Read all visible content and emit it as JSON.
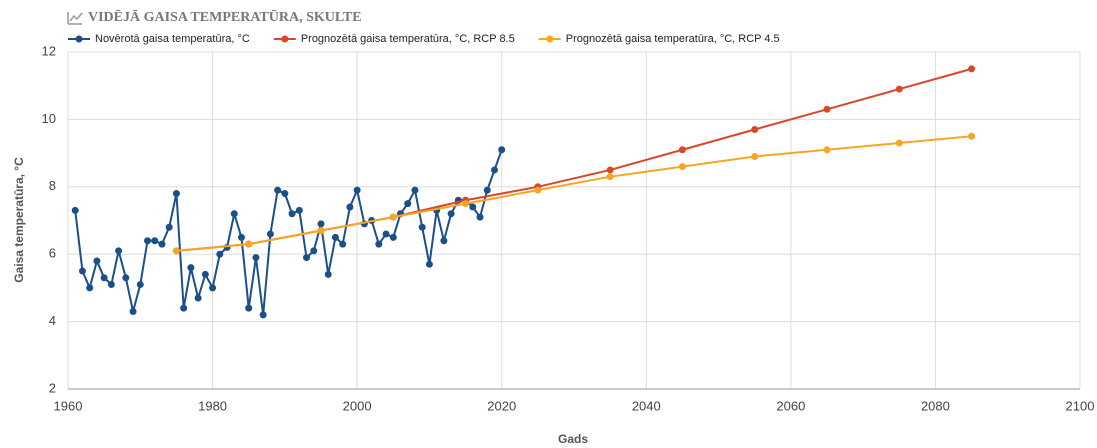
{
  "chart_data": {
    "type": "line",
    "title": "VIDĒJĀ GAISA TEMPERATŪRA, SKULTE",
    "x_label": "Gads",
    "y_label": "Gaisa temperatūra, °C",
    "xlim": [
      1960,
      2100
    ],
    "xticks": [
      1960,
      1980,
      2000,
      2020,
      2040,
      2060,
      2080,
      2100
    ],
    "ylim": [
      2,
      12
    ],
    "yticks": [
      2,
      4,
      6,
      8,
      10,
      12
    ],
    "grid": true,
    "legend": "top",
    "series": [
      {
        "name": "Novērotā gaisa temperatūra, °C",
        "color": "#1b4f8a",
        "x": [
          1961,
          1962,
          1963,
          1964,
          1965,
          1966,
          1967,
          1968,
          1969,
          1970,
          1971,
          1972,
          1973,
          1974,
          1975,
          1976,
          1977,
          1978,
          1979,
          1980,
          1981,
          1982,
          1983,
          1984,
          1985,
          1986,
          1987,
          1988,
          1989,
          1990,
          1991,
          1992,
          1993,
          1994,
          1995,
          1996,
          1997,
          1998,
          1999,
          2000,
          2001,
          2002,
          2003,
          2004,
          2005,
          2006,
          2007,
          2008,
          2009,
          2010,
          2011,
          2012,
          2013,
          2014,
          2015,
          2016,
          2017,
          2018,
          2019,
          2020
        ],
        "values": [
          7.3,
          5.5,
          5.0,
          5.8,
          5.3,
          5.1,
          6.1,
          5.3,
          4.3,
          5.1,
          6.4,
          6.4,
          6.3,
          6.8,
          7.8,
          4.4,
          5.6,
          4.7,
          5.4,
          5.0,
          6.0,
          6.2,
          7.2,
          6.5,
          4.4,
          5.9,
          4.2,
          6.6,
          7.9,
          7.8,
          7.2,
          7.3,
          5.9,
          6.1,
          6.9,
          5.4,
          6.5,
          6.3,
          7.4,
          7.9,
          6.9,
          7.0,
          6.3,
          6.6,
          6.5,
          7.2,
          7.5,
          7.9,
          6.8,
          5.7,
          7.3,
          6.4,
          7.2,
          7.6,
          7.6,
          7.4,
          7.1,
          7.9,
          8.5,
          9.1
        ]
      },
      {
        "name": "Prognozētā gaisa temperatūra, °C, RCP 8.5",
        "color": "#d9472b",
        "x": [
          1975,
          1985,
          1995,
          2005,
          2015,
          2025,
          2035,
          2045,
          2055,
          2065,
          2075,
          2085
        ],
        "values": [
          6.1,
          6.3,
          6.7,
          7.1,
          7.6,
          8.0,
          8.5,
          9.1,
          9.7,
          10.3,
          10.9,
          11.5
        ]
      },
      {
        "name": "Prognozētā gaisa temperatūra, °C, RCP 4.5",
        "color": "#f5a623",
        "x": [
          1975,
          1985,
          1995,
          2005,
          2015,
          2025,
          2035,
          2045,
          2055,
          2065,
          2075,
          2085
        ],
        "values": [
          6.1,
          6.3,
          6.7,
          7.1,
          7.5,
          7.9,
          8.3,
          8.6,
          8.9,
          9.1,
          9.3,
          9.5
        ]
      }
    ]
  }
}
